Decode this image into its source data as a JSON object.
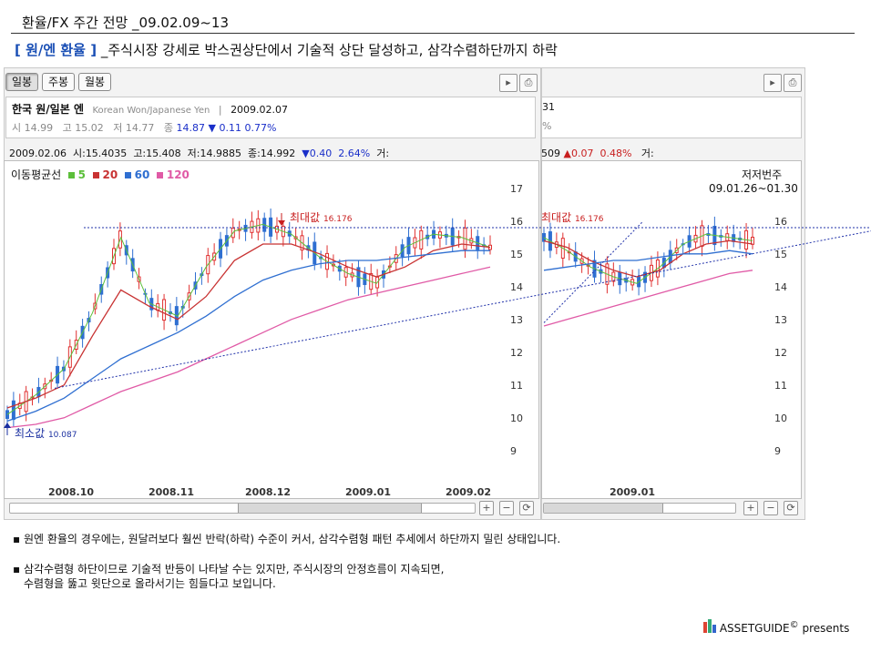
{
  "page_title": "환율/FX 주간 전망 _09.02.09~13",
  "headline": {
    "tag": "[ 원/엔 환율 ]",
    "text": "_주식시장 강세로 박스권상단에서 기술적 상단 달성하고, 삼각수렴하단까지 하락"
  },
  "tabs": [
    "일봉",
    "주봉",
    "월봉"
  ],
  "instrument": {
    "name": "한국 원/일본 엔",
    "english": "Korean Won/Japanese Yen",
    "date": "2009.02.07",
    "quote_labels": [
      "시",
      "고",
      "저",
      "종"
    ],
    "open": "14.99",
    "high": "15.02",
    "low": "14.77",
    "close": "14.87",
    "change": "▼ 0.11",
    "change_pct": "0.77%"
  },
  "right_info": {
    "frag1": "31",
    "frag2": "%"
  },
  "ohlc_bar": {
    "date": "2009.02.06",
    "open_lbl": "시:",
    "open": "15.4035",
    "high_lbl": "고:",
    "high": "15.408",
    "low_lbl": "저:",
    "low": "14.9885",
    "close_lbl": "종:",
    "close": "14.992",
    "change": "▼0.40",
    "pct": "2.64%",
    "vol_lbl": "거:"
  },
  "right_ohlc": {
    "frag": "509",
    "change": "▲0.07",
    "pct": "0.48%",
    "vol_lbl": "거:"
  },
  "ma_legend": {
    "label": "이동평균선",
    "items": [
      {
        "value": "5",
        "color": "#5cbf3a"
      },
      {
        "value": "20",
        "color": "#c83232"
      },
      {
        "value": "60",
        "color": "#2f6fd1"
      },
      {
        "value": "120",
        "color": "#e05aa6"
      }
    ]
  },
  "annotations": {
    "max_label": "최대값",
    "max_value": "16.176",
    "min_label": "최소값",
    "min_value": "10.087",
    "right_note": "저저번주",
    "right_range": "09.01.26~01.30"
  },
  "colors": {
    "up": "#e03030",
    "down": "#2f6fd1",
    "trend": "#2233aa"
  },
  "chart_data": [
    {
      "type": "line",
      "title": "",
      "ylim": [
        8.3,
        17.8
      ],
      "y_ticks": [
        17,
        16,
        15,
        14,
        13,
        12,
        11,
        10,
        9
      ],
      "x_ticks": [
        "2008.10",
        "2008.11",
        "2008.12",
        "2009.01",
        "2009.02"
      ],
      "series": [
        {
          "name": "5",
          "values": [
            10.1,
            10.7,
            11.5,
            13.2,
            15.5,
            13.5,
            13.1,
            14.6,
            15.7,
            15.9,
            15.6,
            14.9,
            14.4,
            14.1,
            15.2,
            15.6,
            15.5,
            15.2
          ]
        },
        {
          "name": "20",
          "values": [
            10.3,
            10.6,
            11.0,
            12.5,
            13.9,
            13.4,
            13.0,
            13.7,
            14.8,
            15.3,
            15.3,
            15.0,
            14.6,
            14.3,
            14.6,
            15.1,
            15.3,
            15.2
          ]
        },
        {
          "name": "60",
          "values": [
            9.9,
            10.2,
            10.6,
            11.2,
            11.8,
            12.2,
            12.6,
            13.1,
            13.7,
            14.2,
            14.5,
            14.7,
            14.8,
            14.8,
            14.9,
            15.0,
            15.1,
            15.1
          ]
        },
        {
          "name": "120",
          "values": [
            9.7,
            9.8,
            10.0,
            10.4,
            10.8,
            11.1,
            11.4,
            11.8,
            12.2,
            12.6,
            13.0,
            13.3,
            13.6,
            13.8,
            14.0,
            14.2,
            14.4,
            14.6
          ]
        }
      ],
      "max_point": 16.176,
      "min_point": 10.087
    },
    {
      "type": "line",
      "title": "",
      "ylim": [
        8.3,
        17.8
      ],
      "y_ticks": [
        16,
        15,
        14,
        13,
        12,
        11,
        10,
        9
      ],
      "x_ticks": [
        "2009.01"
      ],
      "series": [
        {
          "name": "5",
          "values": [
            15.5,
            15.1,
            14.6,
            14.3,
            14.1,
            14.6,
            15.3,
            15.6,
            15.5,
            15.4
          ]
        },
        {
          "name": "20",
          "values": [
            15.4,
            15.2,
            14.8,
            14.5,
            14.3,
            14.5,
            15.0,
            15.3,
            15.4,
            15.3
          ]
        },
        {
          "name": "60",
          "values": [
            14.5,
            14.6,
            14.7,
            14.8,
            14.8,
            14.9,
            15.0,
            15.0,
            15.1,
            15.0
          ]
        },
        {
          "name": "120",
          "values": [
            12.8,
            13.0,
            13.2,
            13.4,
            13.6,
            13.8,
            14.0,
            14.2,
            14.4,
            14.5
          ]
        }
      ]
    }
  ],
  "bullets": [
    "원엔 환율의 경우에는, 원달러보다 훨씬 반락(하락) 수준이 커서, 삼각수렴형 패턴 추세에서 하단까지 밀린 상태입니다.",
    "삼각수렴형 하단이므로 기술적 반등이 나타날 수는 있지만, 주식시장의 안정흐름이 지속되면,",
    "수렴형을 뚫고 윗단으로 올라서기는 힘들다고 보입니다."
  ],
  "footer": {
    "brand": "ASSETGUIDE",
    "mark": "©",
    "suffix": " presents"
  },
  "scroll_btns": [
    "+",
    "−",
    "⟳"
  ]
}
